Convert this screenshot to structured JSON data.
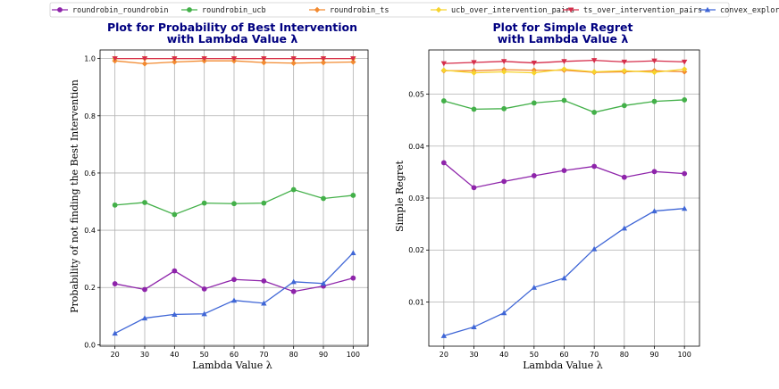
{
  "legend": [
    {
      "name": "roundrobin_roundrobin",
      "color": "#8e24aa",
      "marker": "circle"
    },
    {
      "name": "roundrobin_ucb",
      "color": "#43b049",
      "marker": "circle"
    },
    {
      "name": "roundrobin_ts",
      "color": "#f28a30",
      "marker": "diamond"
    },
    {
      "name": "ucb_over_intervention_pairs",
      "color": "#f6d32d",
      "marker": "diamond"
    },
    {
      "name": "ts_over_intervention_pairs",
      "color": "#d62d4a",
      "marker": "triangle-down"
    },
    {
      "name": "convex_explorer",
      "color": "#3f66d6",
      "marker": "triangle-up"
    }
  ],
  "chart_data": [
    {
      "type": "line",
      "title": "Plot for Probability of Best Intervention\nwith Lambda Value λ",
      "title_lines": [
        "Plot for Probability of Best Intervention",
        "with Lambda Value λ"
      ],
      "xlabel": "Lambda Value λ",
      "ylabel": "Probability of not finding the Best Intervention",
      "x": [
        20,
        30,
        40,
        50,
        60,
        70,
        80,
        90,
        100
      ],
      "xlim": [
        15,
        105
      ],
      "ylim": [
        -0.005,
        1.03
      ],
      "yticks": [
        0.0,
        0.2,
        0.4,
        0.6,
        0.8,
        1.0
      ],
      "ytick_labels": [
        "0.0",
        "0.2",
        "0.4",
        "0.6",
        "0.8",
        "1.0"
      ],
      "xtick_labels": [
        "20",
        "30",
        "40",
        "50",
        "60",
        "70",
        "80",
        "90",
        "100"
      ],
      "series": [
        {
          "name": "roundrobin_roundrobin",
          "values": [
            0.213,
            0.193,
            0.258,
            0.195,
            0.228,
            0.223,
            0.186,
            0.205,
            0.233
          ]
        },
        {
          "name": "roundrobin_ucb",
          "values": [
            0.488,
            0.497,
            0.455,
            0.495,
            0.493,
            0.495,
            0.542,
            0.511,
            0.522
          ]
        },
        {
          "name": "roundrobin_ts",
          "values": [
            0.992,
            0.982,
            0.988,
            0.992,
            0.992,
            0.986,
            0.984,
            0.986,
            0.988
          ]
        },
        {
          "name": "ucb_over_intervention_pairs",
          "values": [
            1.0,
            1.0,
            1.0,
            1.0,
            1.0,
            1.0,
            1.0,
            1.0,
            1.0
          ]
        },
        {
          "name": "ts_over_intervention_pairs",
          "values": [
            1.0,
            1.0,
            1.0,
            1.0,
            1.0,
            1.0,
            1.0,
            1.0,
            1.0
          ]
        },
        {
          "name": "convex_explorer",
          "values": [
            0.04,
            0.093,
            0.106,
            0.108,
            0.155,
            0.145,
            0.22,
            0.214,
            0.321
          ]
        }
      ],
      "grid": true
    },
    {
      "type": "line",
      "title": "Plot for Simple Regret\nwith Lambda Value λ",
      "title_lines": [
        "Plot for Simple Regret",
        "with Lambda Value λ"
      ],
      "xlabel": "Lambda Value λ",
      "ylabel": "Simple Regret",
      "x": [
        20,
        30,
        40,
        50,
        60,
        70,
        80,
        90,
        100
      ],
      "xlim": [
        15,
        105
      ],
      "ylim": [
        0.0015,
        0.0585
      ],
      "yticks": [
        0.01,
        0.02,
        0.03,
        0.04,
        0.05
      ],
      "ytick_labels": [
        "0.01",
        "0.02",
        "0.03",
        "0.04",
        "0.05"
      ],
      "xtick_labels": [
        "20",
        "30",
        "40",
        "50",
        "60",
        "70",
        "80",
        "90",
        "100"
      ],
      "series": [
        {
          "name": "roundrobin_roundrobin",
          "values": [
            0.0368,
            0.032,
            0.0332,
            0.0343,
            0.0353,
            0.0361,
            0.034,
            0.0351,
            0.0347
          ]
        },
        {
          "name": "roundrobin_ucb",
          "values": [
            0.0487,
            0.0471,
            0.0472,
            0.0483,
            0.0488,
            0.0465,
            0.0478,
            0.0486,
            0.0489
          ]
        },
        {
          "name": "roundrobin_ts",
          "values": [
            0.0545,
            0.0545,
            0.0547,
            0.0546,
            0.0546,
            0.0542,
            0.0543,
            0.0545,
            0.0543
          ]
        },
        {
          "name": "ucb_over_intervention_pairs",
          "values": [
            0.0546,
            0.0541,
            0.0543,
            0.0541,
            0.0548,
            0.0543,
            0.0545,
            0.0542,
            0.0548
          ]
        },
        {
          "name": "ts_over_intervention_pairs",
          "values": [
            0.0559,
            0.0561,
            0.0563,
            0.056,
            0.0563,
            0.0565,
            0.0562,
            0.0564,
            0.0562
          ]
        },
        {
          "name": "convex_explorer",
          "values": [
            0.0035,
            0.0052,
            0.0079,
            0.0128,
            0.0146,
            0.0202,
            0.0242,
            0.0275,
            0.028
          ]
        }
      ],
      "grid": true
    }
  ]
}
